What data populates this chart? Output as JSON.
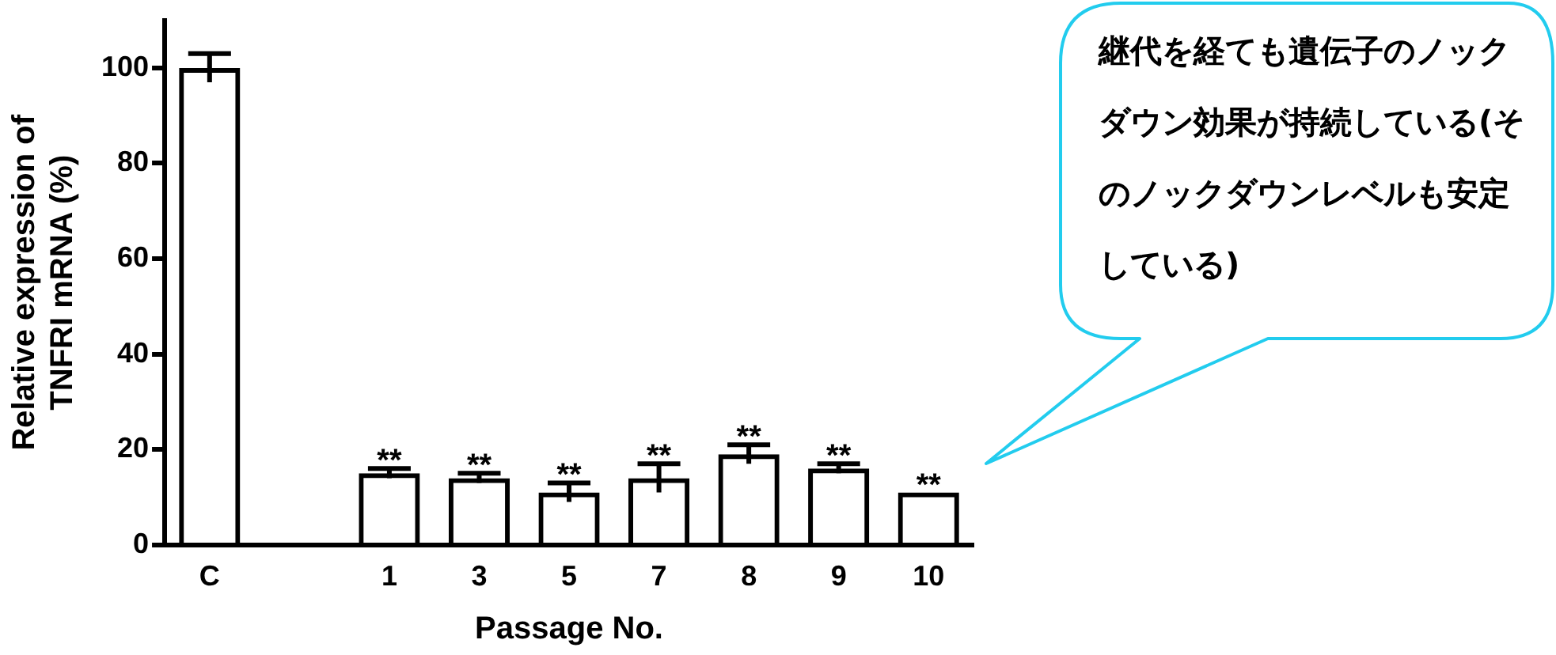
{
  "chart_data": {
    "type": "bar",
    "xlabel": "Passage No.",
    "ylabel": "Relative expression of\nTNFRI mRNA (%)",
    "categories": [
      "C",
      null,
      "1",
      "3",
      "5",
      "7",
      "8",
      "9",
      "10"
    ],
    "values": [
      100,
      null,
      15,
      14,
      11,
      14,
      19,
      16,
      11
    ],
    "errors": [
      3,
      null,
      1,
      1,
      2,
      3,
      2,
      1,
      null
    ],
    "color": "#000000",
    "ylim": [
      0,
      110
    ],
    "yticks": [
      0,
      20,
      40,
      60,
      80,
      100
    ],
    "grid": false,
    "legend": false,
    "annotations": [
      {
        "text": "**",
        "x": "1",
        "y": 16
      },
      {
        "text": "**",
        "x": "3",
        "y": 15
      },
      {
        "text": "**",
        "x": "5",
        "y": 13
      },
      {
        "text": "**",
        "x": "7",
        "y": 17
      },
      {
        "text": "**",
        "x": "8",
        "y": 21
      },
      {
        "text": "**",
        "x": "9",
        "y": 17
      },
      {
        "text": "**",
        "x": "10",
        "y": 11
      },
      "継代を経ても遺伝子のノックダウン効果が持続している(そのノックダウンレベルも安定している)"
    ]
  }
}
